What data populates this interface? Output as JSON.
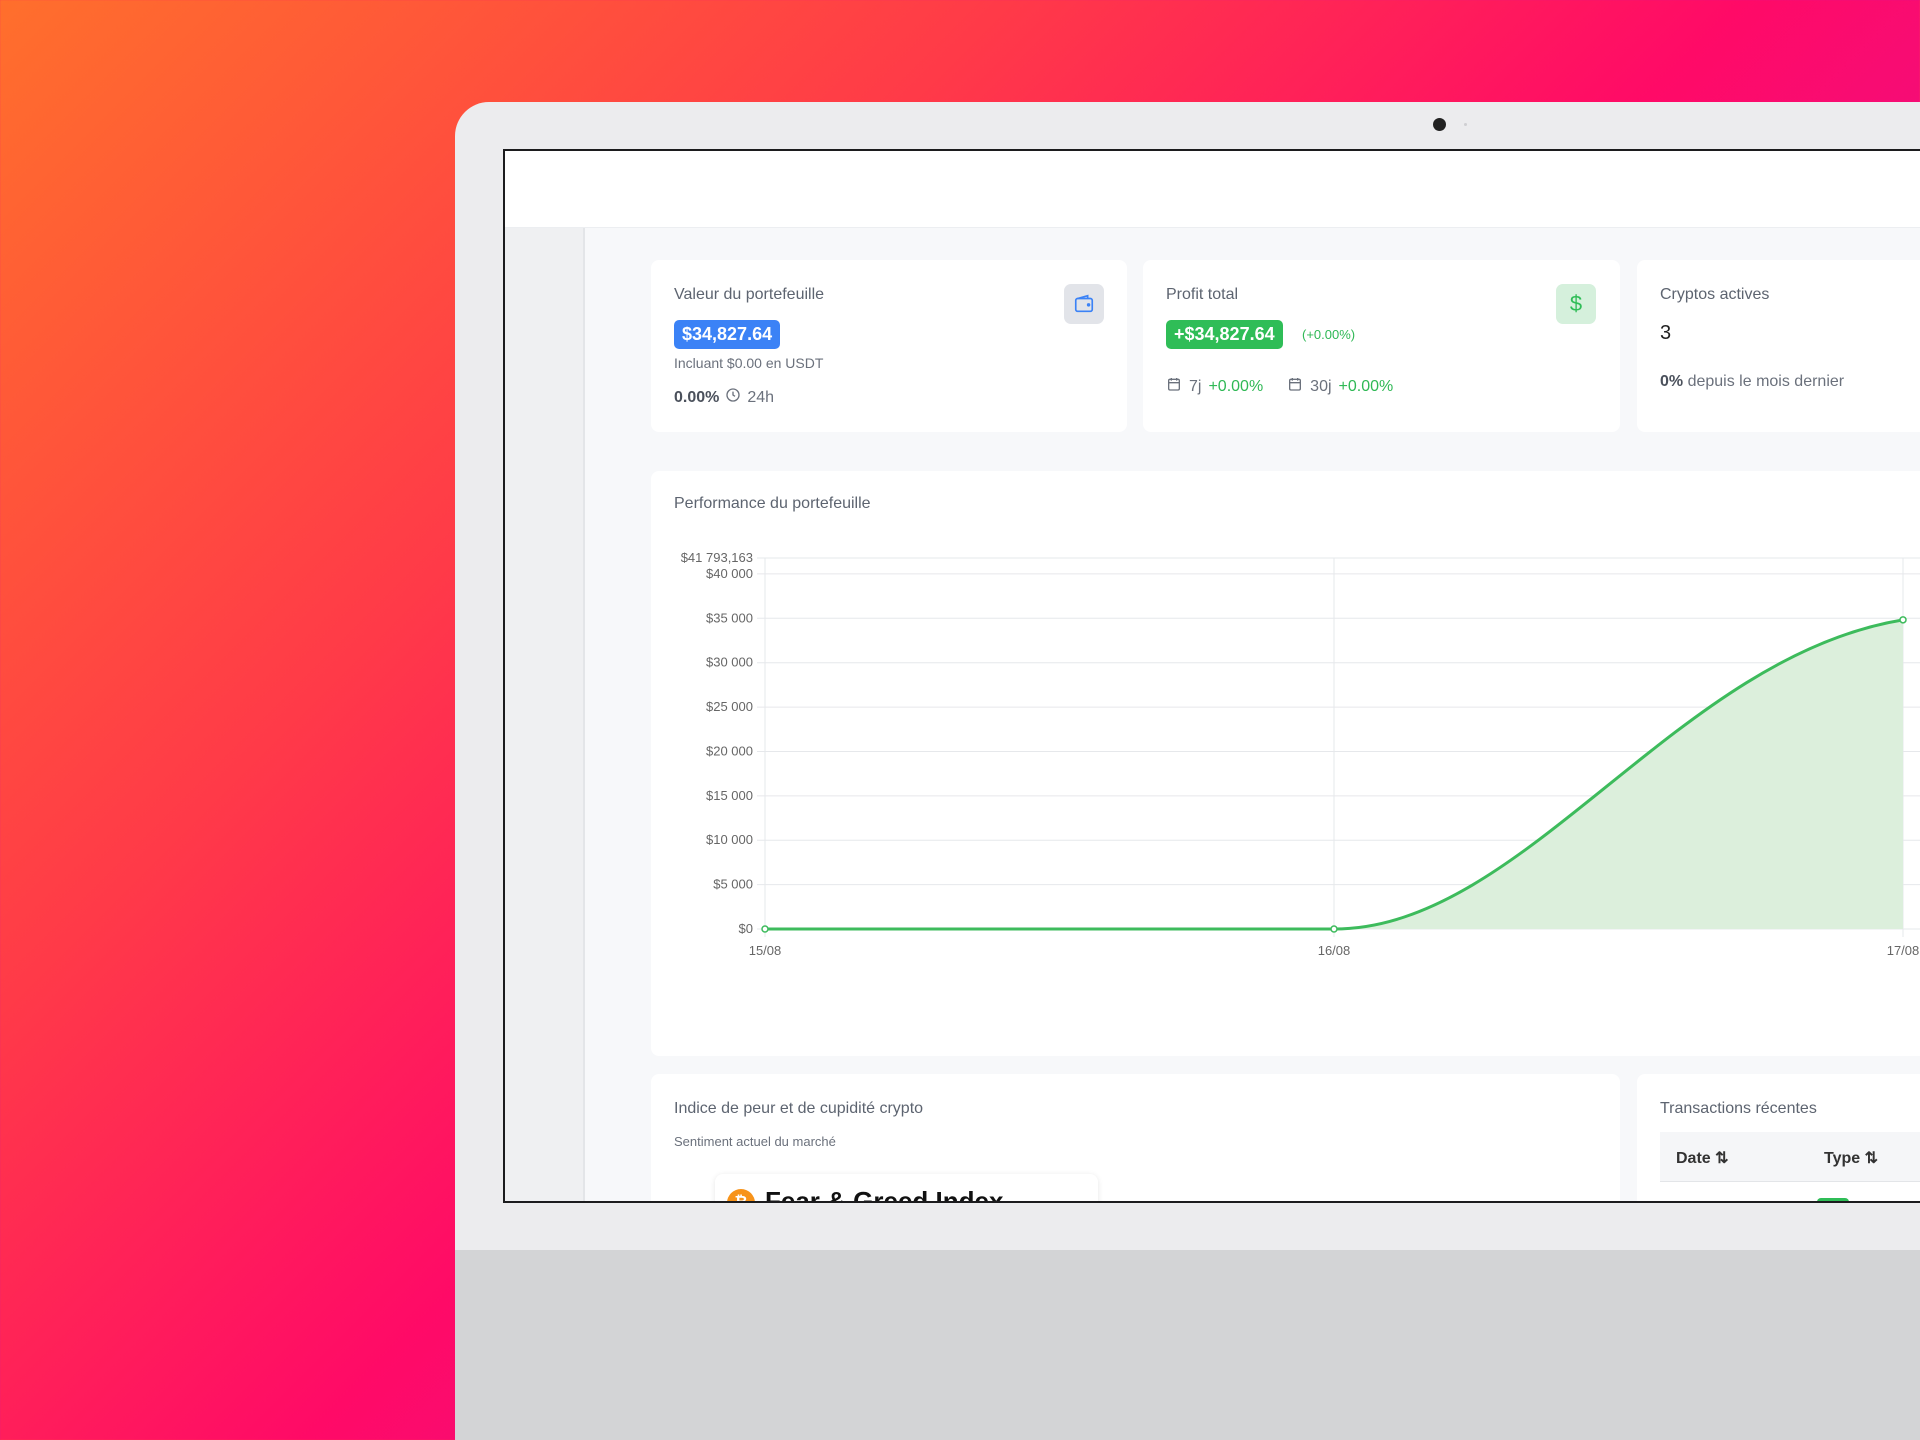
{
  "cards": {
    "portfolio": {
      "title": "Valeur du portefeuille",
      "value": "$34,827.64",
      "sub": "Incluant $0.00 en USDT",
      "change": "0.00%",
      "period": "24h",
      "icon": "wallet-icon",
      "accent": "#3b82f6"
    },
    "profit": {
      "title": "Profit total",
      "value": "+$34,827.64",
      "pct": "(+0.00%)",
      "d7_label": "7j",
      "d7_value": "+0.00%",
      "d30_label": "30j",
      "d30_value": "+0.00%",
      "icon": "dollar-icon",
      "accent": "#2fbd57"
    },
    "active": {
      "title": "Cryptos actives",
      "value": "3",
      "change": "0%",
      "change_text": "depuis le mois dernier"
    }
  },
  "performance": {
    "title": "Performance du portefeuille"
  },
  "fear_greed": {
    "title": "Indice de peur et de cupidité crypto",
    "subtitle": "Sentiment actuel du marché",
    "widget_title": "Fear & Greed Index",
    "icon": "bitcoin-icon"
  },
  "transactions": {
    "title": "Transactions récentes",
    "columns": [
      "Date",
      "Type"
    ]
  },
  "chart_data": {
    "type": "area",
    "title": "Performance du portefeuille",
    "categories": [
      "15/08",
      "16/08",
      "17/08"
    ],
    "values": [
      0,
      0,
      34827.64
    ],
    "ylim": [
      0,
      41793.163
    ],
    "y_ticks": [
      0,
      5000,
      10000,
      15000,
      20000,
      25000,
      30000,
      35000,
      40000,
      41793.163
    ],
    "y_tick_labels": [
      "$0",
      "$5 000",
      "$10 000",
      "$15 000",
      "$20 000",
      "$25 000",
      "$30 000",
      "$35 000",
      "$40 000",
      "$41 793,163"
    ],
    "grid": true,
    "line_color": "#3dbb5c",
    "fill_color": "#dcefdc"
  }
}
